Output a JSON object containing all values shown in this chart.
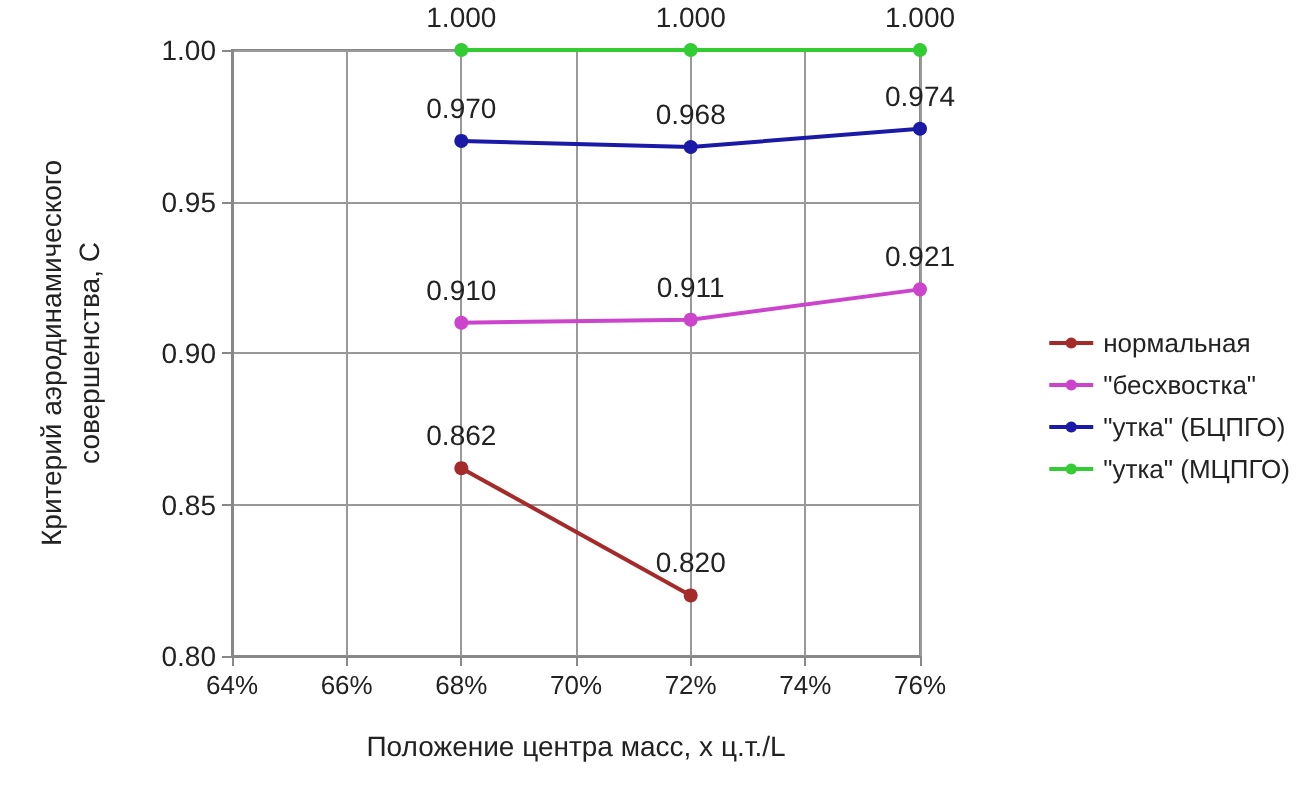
{
  "chart_data": {
    "type": "line",
    "xlabel": "Положение центра масс, x ц.т./L",
    "ylabel": "Критерий аэродинамического\nсовершенства, С",
    "xlim": [
      64,
      76
    ],
    "xticks": [
      {
        "value": 64,
        "label": "64%"
      },
      {
        "value": 66,
        "label": "66%"
      },
      {
        "value": 68,
        "label": "68%"
      },
      {
        "value": 70,
        "label": "70%"
      },
      {
        "value": 72,
        "label": "72%"
      },
      {
        "value": 74,
        "label": "74%"
      },
      {
        "value": 76,
        "label": "76%"
      }
    ],
    "ylim": [
      0.8,
      1.0
    ],
    "yticks": [
      {
        "value": 0.8,
        "label": "0.80"
      },
      {
        "value": 0.85,
        "label": "0.85"
      },
      {
        "value": 0.9,
        "label": "0.90"
      },
      {
        "value": 0.95,
        "label": "0.95"
      },
      {
        "value": 1.0,
        "label": "1.00"
      }
    ],
    "series": [
      {
        "name": "нормальная",
        "color": "#a52a2a",
        "x": [
          68,
          72
        ],
        "values": [
          0.862,
          0.82
        ],
        "value_labels": [
          "0.862",
          "0.820"
        ]
      },
      {
        "name": "\"бесхвостка\"",
        "color": "#cc44cc",
        "x": [
          68,
          72,
          76
        ],
        "values": [
          0.91,
          0.911,
          0.921
        ],
        "value_labels": [
          "0.910",
          "0.911",
          "0.921"
        ]
      },
      {
        "name": "\"утка\" (БЦПГО)",
        "color": "#1a1aa6",
        "x": [
          68,
          72,
          76
        ],
        "values": [
          0.97,
          0.968,
          0.974
        ],
        "value_labels": [
          "0.970",
          "0.968",
          "0.974"
        ]
      },
      {
        "name": "\"утка\" (МЦПГО)",
        "color": "#33cc33",
        "x": [
          68,
          72,
          76
        ],
        "values": [
          1.0,
          1.0,
          1.0
        ],
        "value_labels": [
          "1.000",
          "1.000",
          "1.000"
        ]
      }
    ],
    "grid": true,
    "legend": "right",
    "marker": "circle",
    "line_style": "solid"
  }
}
